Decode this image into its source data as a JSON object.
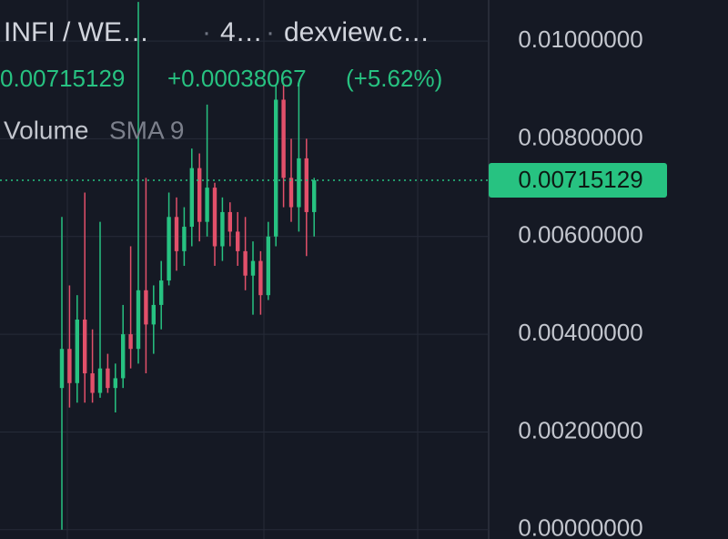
{
  "header": {
    "pair": "INFI / WE…",
    "interval": "4…",
    "source": "dexview.c…"
  },
  "chart_data": {
    "type": "candlestick",
    "last_price": 0.00715129,
    "change": "+0.00038067",
    "change_pct": "(+5.62%)",
    "indicator": "Volume",
    "indicator_setting": "SMA 9",
    "up_color": "#27c281",
    "down_color": "#e2506a",
    "ylim": [
      -0.00019,
      0.01084
    ],
    "yticks": [
      {
        "value": 0.01,
        "label": "0.01000000"
      },
      {
        "value": 0.008,
        "label": "0.00800000"
      },
      {
        "value": 0.006,
        "label": "0.00600000"
      },
      {
        "value": 0.004,
        "label": "0.00400000"
      },
      {
        "value": 0.002,
        "label": "0.00200000"
      },
      {
        "value": 0,
        "label": "0.00000000"
      }
    ],
    "grid": true,
    "open": [
      0.0029,
      0.0037,
      0.003,
      0.0043,
      0.0032,
      0.0028,
      0.0033,
      0.0029,
      0.0031,
      0.004,
      0.0037,
      0.0049,
      0.0042,
      0.0046,
      0.0051,
      0.0064,
      0.0057,
      0.0062,
      0.0074,
      0.0063,
      0.007,
      0.0058,
      0.0065,
      0.0061,
      0.0057,
      0.0052,
      0.0055,
      0.0048,
      0.006,
      0.0088,
      0.0072,
      0.0066,
      0.0076,
      0.0065
    ],
    "high": [
      0.0064,
      0.005,
      0.0048,
      0.0069,
      0.0041,
      0.0063,
      0.0036,
      0.0034,
      0.0046,
      0.0058,
      0.0108,
      0.0072,
      0.005,
      0.0055,
      0.0069,
      0.0068,
      0.0066,
      0.0078,
      0.0077,
      0.0087,
      0.0071,
      0.0068,
      0.0067,
      0.0065,
      0.0064,
      0.0059,
      0.0057,
      0.0063,
      0.0091,
      0.0091,
      0.008,
      0.0091,
      0.008,
      0.0072
    ],
    "low": [
      0.0,
      0.0025,
      0.0026,
      0.0026,
      0.0026,
      0.0027,
      0.0028,
      0.0024,
      0.0029,
      0.0033,
      0.0034,
      0.0032,
      0.0036,
      0.0041,
      0.005,
      0.0053,
      0.0054,
      0.0058,
      0.0059,
      0.006,
      0.0054,
      0.0055,
      0.0058,
      0.0054,
      0.0049,
      0.0044,
      0.0044,
      0.0047,
      0.0058,
      0.0066,
      0.0063,
      0.0061,
      0.0056,
      0.006
    ],
    "close": [
      0.0037,
      0.003,
      0.0043,
      0.0032,
      0.0028,
      0.0033,
      0.0029,
      0.0031,
      0.004,
      0.0037,
      0.0049,
      0.0042,
      0.0046,
      0.0051,
      0.0064,
      0.0057,
      0.0062,
      0.0074,
      0.0063,
      0.007,
      0.0058,
      0.0065,
      0.0061,
      0.0057,
      0.0052,
      0.0055,
      0.0048,
      0.006,
      0.0088,
      0.0072,
      0.0066,
      0.0076,
      0.0065,
      0.00715129
    ]
  }
}
